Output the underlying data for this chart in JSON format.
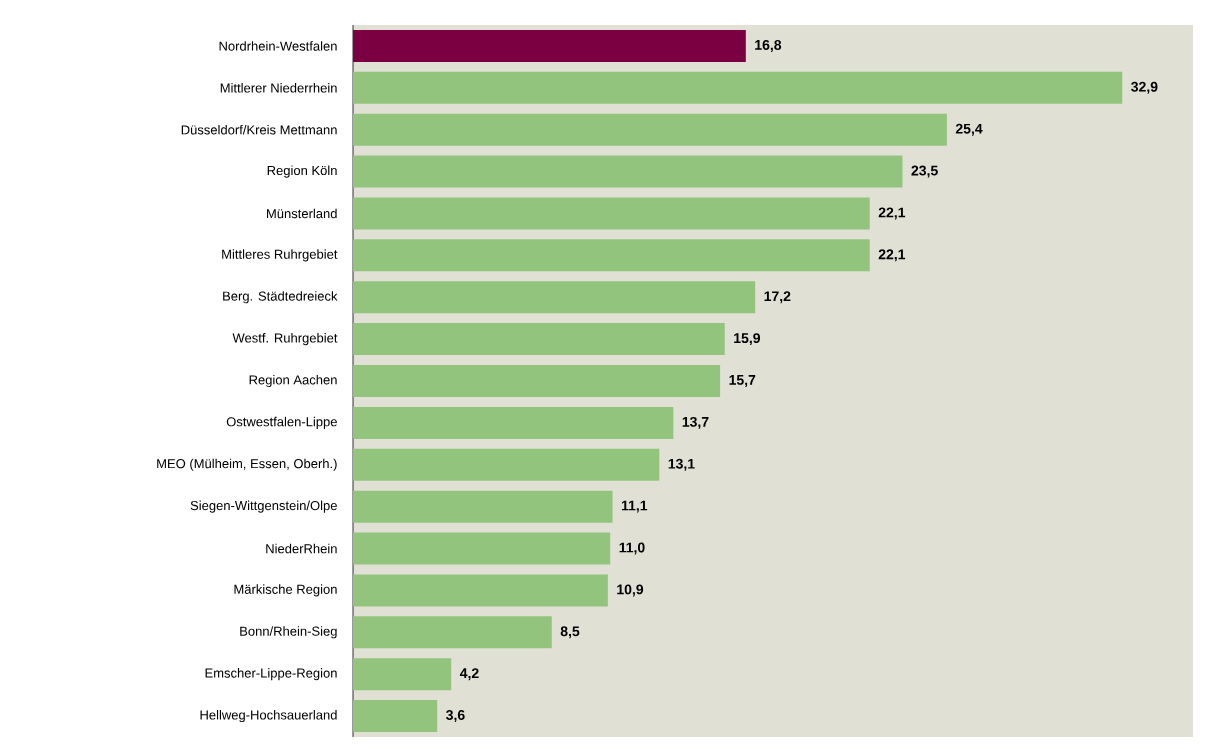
{
  "chart_data": {
    "type": "bar",
    "orientation": "horizontal",
    "categories": [
      "Nordrhein-Westfalen",
      "Mittlerer Niederrhein",
      "Düsseldorf/Kreis Mettmann",
      "Region Köln",
      "Münsterland",
      "Mittleres Ruhrgebiet",
      "Berg. Städtedreieck",
      "Westf. Ruhrgebiet",
      "Region Aachen",
      "Ostwestfalen-Lippe",
      "MEO (Mülheim, Essen, Oberh.)",
      "Siegen-Wittgenstein/Olpe",
      "NiederRhein",
      "Märkische Region",
      "Bonn/Rhein-Sieg",
      "Emscher-Lippe-Region",
      "Hellweg-Hochsauerland"
    ],
    "values": [
      16.8,
      32.9,
      25.4,
      23.5,
      22.1,
      22.1,
      17.2,
      15.9,
      15.7,
      13.7,
      13.1,
      11.1,
      11.0,
      10.9,
      8.5,
      4.2,
      3.6
    ],
    "value_labels": [
      "16,8",
      "32,9",
      "25,4",
      "23,5",
      "22,1",
      "22,1",
      "17,2",
      "15,9",
      "15,7",
      "13,7",
      "13,1",
      "11,1",
      "11,0",
      "10,9",
      "8,5",
      "4,2",
      "3,6"
    ],
    "colors": [
      "#7b0041",
      "#93c47d",
      "#93c47d",
      "#93c47d",
      "#93c47d",
      "#93c47d",
      "#93c47d",
      "#93c47d",
      "#93c47d",
      "#93c47d",
      "#93c47d",
      "#93c47d",
      "#93c47d",
      "#93c47d",
      "#93c47d",
      "#93c47d",
      "#93c47d"
    ]
  }
}
